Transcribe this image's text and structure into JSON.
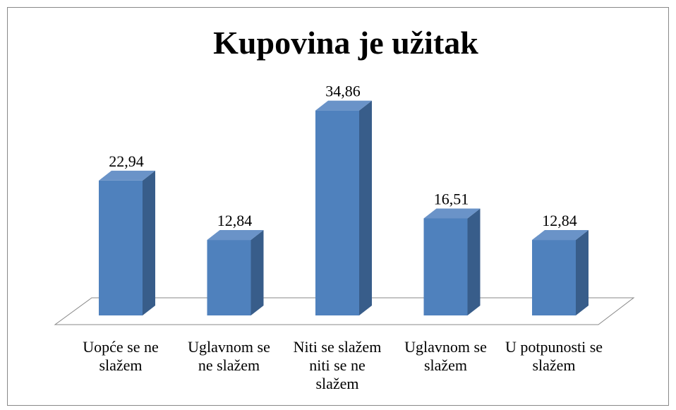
{
  "chart_data": {
    "type": "bar3d",
    "title": "Kupovina je užitak",
    "categories": [
      "Uopće se ne slažem",
      "Uglavnom se ne slažem",
      "Niti se slažem niti se ne slažem",
      "Uglavnom se slažem",
      "U potpunosti se slažem"
    ],
    "values": [
      22.94,
      12.84,
      34.86,
      16.51,
      12.84
    ],
    "value_labels": [
      "22,94",
      "12,84",
      "34,86",
      "16,51",
      "12,84"
    ],
    "color": "#4f81bd"
  }
}
